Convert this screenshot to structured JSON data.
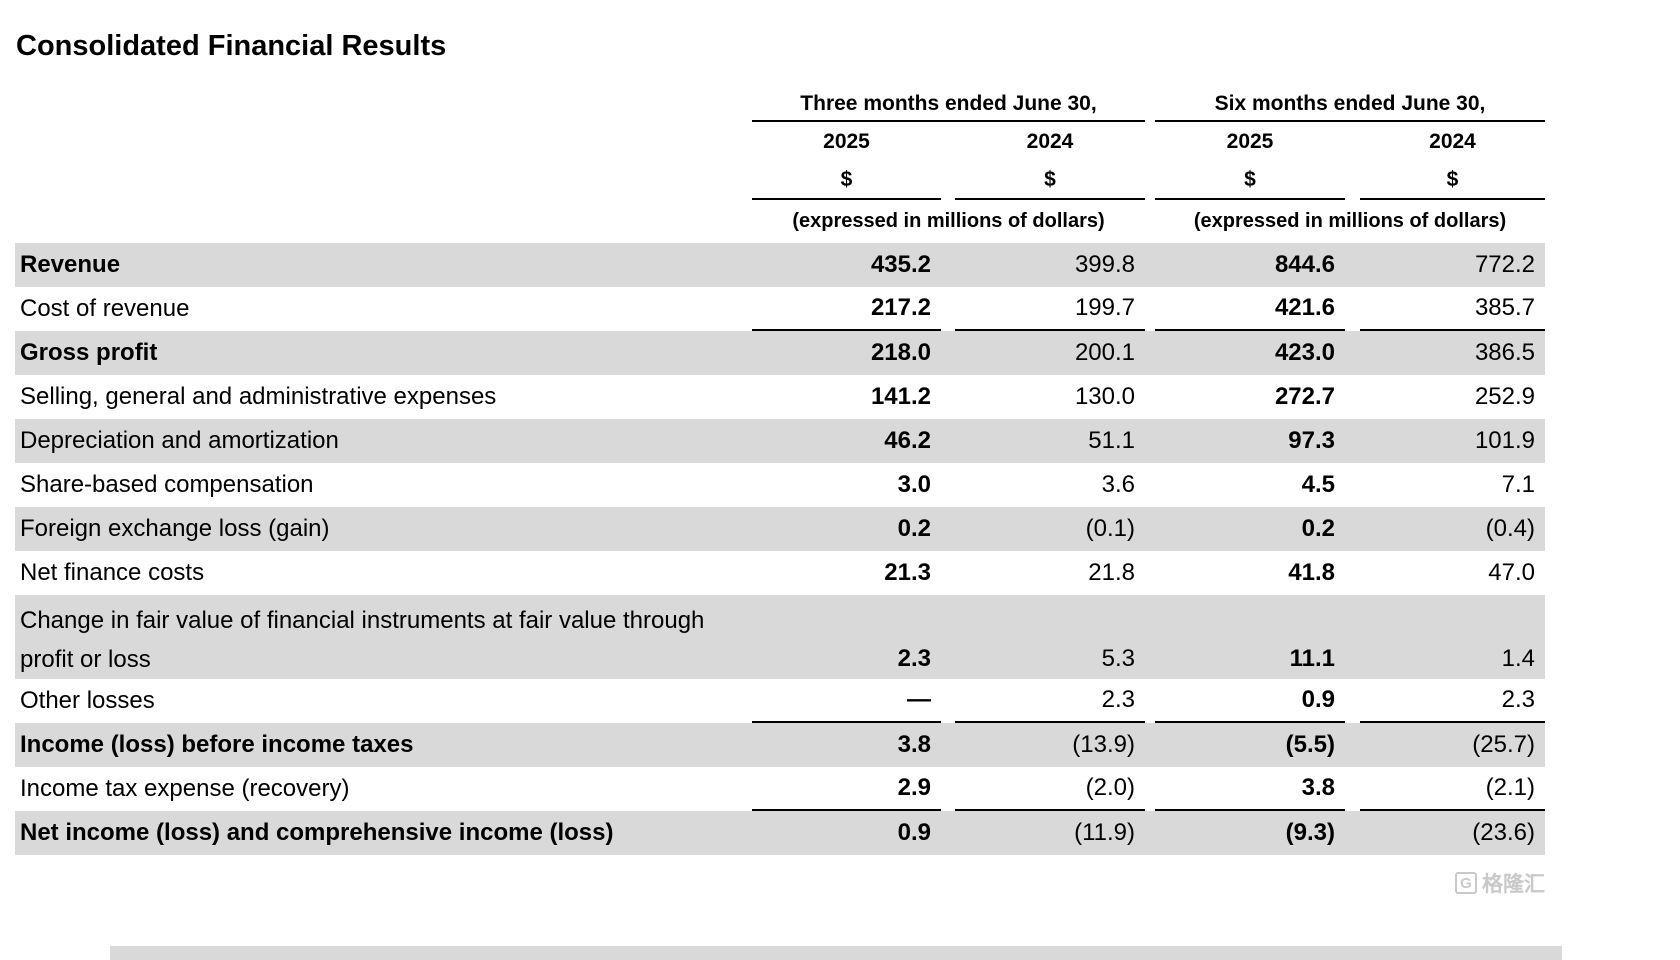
{
  "title": "Consolidated Financial Results",
  "table": {
    "col_groups": [
      {
        "label": "Three months ended June 30,"
      },
      {
        "label": "Six months ended June 30,"
      }
    ],
    "years": [
      "2025",
      "2024",
      "2025",
      "2024"
    ],
    "currency_symbols": [
      "$",
      "$",
      "$",
      "$"
    ],
    "unit_notes": [
      "(expressed in millions of dollars)",
      "(expressed in millions of dollars)"
    ],
    "rows": [
      {
        "label": "Revenue",
        "bold_label": true,
        "shaded": true,
        "underline": false,
        "two_line": false,
        "values": [
          "435.2",
          "399.8",
          "844.6",
          "772.2"
        ]
      },
      {
        "label": "Cost of revenue",
        "bold_label": false,
        "shaded": false,
        "underline": true,
        "two_line": false,
        "values": [
          "217.2",
          "199.7",
          "421.6",
          "385.7"
        ]
      },
      {
        "label": "Gross profit",
        "bold_label": true,
        "shaded": true,
        "underline": false,
        "two_line": false,
        "values": [
          "218.0",
          "200.1",
          "423.0",
          "386.5"
        ]
      },
      {
        "label": "Selling, general and administrative expenses",
        "bold_label": false,
        "shaded": false,
        "underline": false,
        "two_line": false,
        "values": [
          "141.2",
          "130.0",
          "272.7",
          "252.9"
        ]
      },
      {
        "label": "Depreciation and amortization",
        "bold_label": false,
        "shaded": true,
        "underline": false,
        "two_line": false,
        "values": [
          "46.2",
          "51.1",
          "97.3",
          "101.9"
        ]
      },
      {
        "label": "Share-based compensation",
        "bold_label": false,
        "shaded": false,
        "underline": false,
        "two_line": false,
        "values": [
          "3.0",
          "3.6",
          "4.5",
          "7.1"
        ]
      },
      {
        "label": "Foreign exchange loss (gain)",
        "bold_label": false,
        "shaded": true,
        "underline": false,
        "two_line": false,
        "values": [
          "0.2",
          "(0.1)",
          "0.2",
          "(0.4)"
        ]
      },
      {
        "label": "Net finance costs",
        "bold_label": false,
        "shaded": false,
        "underline": false,
        "two_line": false,
        "values": [
          "21.3",
          "21.8",
          "41.8",
          "47.0"
        ]
      },
      {
        "label": "Change in fair value of financial instruments at fair value through profit or loss",
        "bold_label": false,
        "shaded": true,
        "underline": false,
        "two_line": true,
        "values": [
          "2.3",
          "5.3",
          "11.1",
          "1.4"
        ]
      },
      {
        "label": "Other losses",
        "bold_label": false,
        "shaded": false,
        "underline": true,
        "two_line": false,
        "values": [
          "—",
          "2.3",
          "0.9",
          "2.3"
        ]
      },
      {
        "label": "Income (loss) before income taxes",
        "bold_label": true,
        "shaded": true,
        "underline": false,
        "two_line": false,
        "values": [
          "3.8",
          "(13.9)",
          "(5.5)",
          "(25.7)"
        ]
      },
      {
        "label": "Income tax expense (recovery)",
        "bold_label": false,
        "shaded": false,
        "underline": true,
        "two_line": false,
        "values": [
          "2.9",
          "(2.0)",
          "3.8",
          "(2.1)"
        ]
      },
      {
        "label": "Net income (loss) and comprehensive income (loss)",
        "bold_label": true,
        "shaded": true,
        "underline": false,
        "two_line": false,
        "values": [
          "0.9",
          "(11.9)",
          "(9.3)",
          "(23.6)"
        ]
      }
    ]
  },
  "watermark": {
    "logo_letter": "G",
    "text": "格隆汇"
  }
}
